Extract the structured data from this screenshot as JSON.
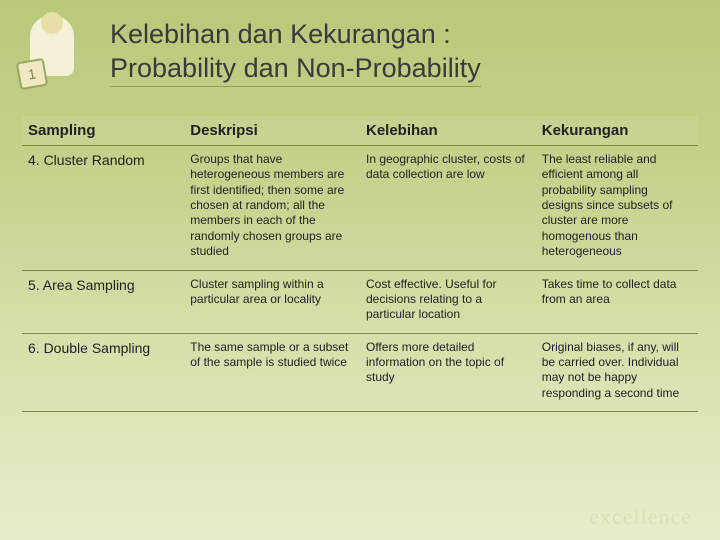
{
  "title": {
    "line1": "Kelebihan dan Kekurangan :",
    "line2": "Probability dan Non-Probability"
  },
  "icon": {
    "clip_text": "1"
  },
  "table": {
    "headers": [
      "Sampling",
      "Deskripsi",
      "Kelebihan",
      "Kekurangan"
    ],
    "rows": [
      {
        "sampling": "4. Cluster Random",
        "deskripsi": "Groups that have heterogeneous members are first identified; then some are chosen at random; all the members in each of the randomly chosen groups are studied",
        "kelebihan": "In geographic cluster, costs of data collection are low",
        "kekurangan": "The least reliable and efficient among all probability sampling designs since subsets of cluster are more homogenous than heterogeneous"
      },
      {
        "sampling": "5. Area Sampling",
        "deskripsi": "Cluster sampling within a particular area or locality",
        "kelebihan": "Cost effective. Useful for decisions relating to a particular location",
        "kekurangan": "Takes time to collect data from an area"
      },
      {
        "sampling": "6. Double Sampling",
        "deskripsi": "The same sample or a subset of the sample is studied twice",
        "kelebihan": "Offers more detailed information on the topic of study",
        "kekurangan": "Original biases, if any, will be carried over. Individual may not be happy responding a second time"
      }
    ]
  },
  "footer": "excellence"
}
